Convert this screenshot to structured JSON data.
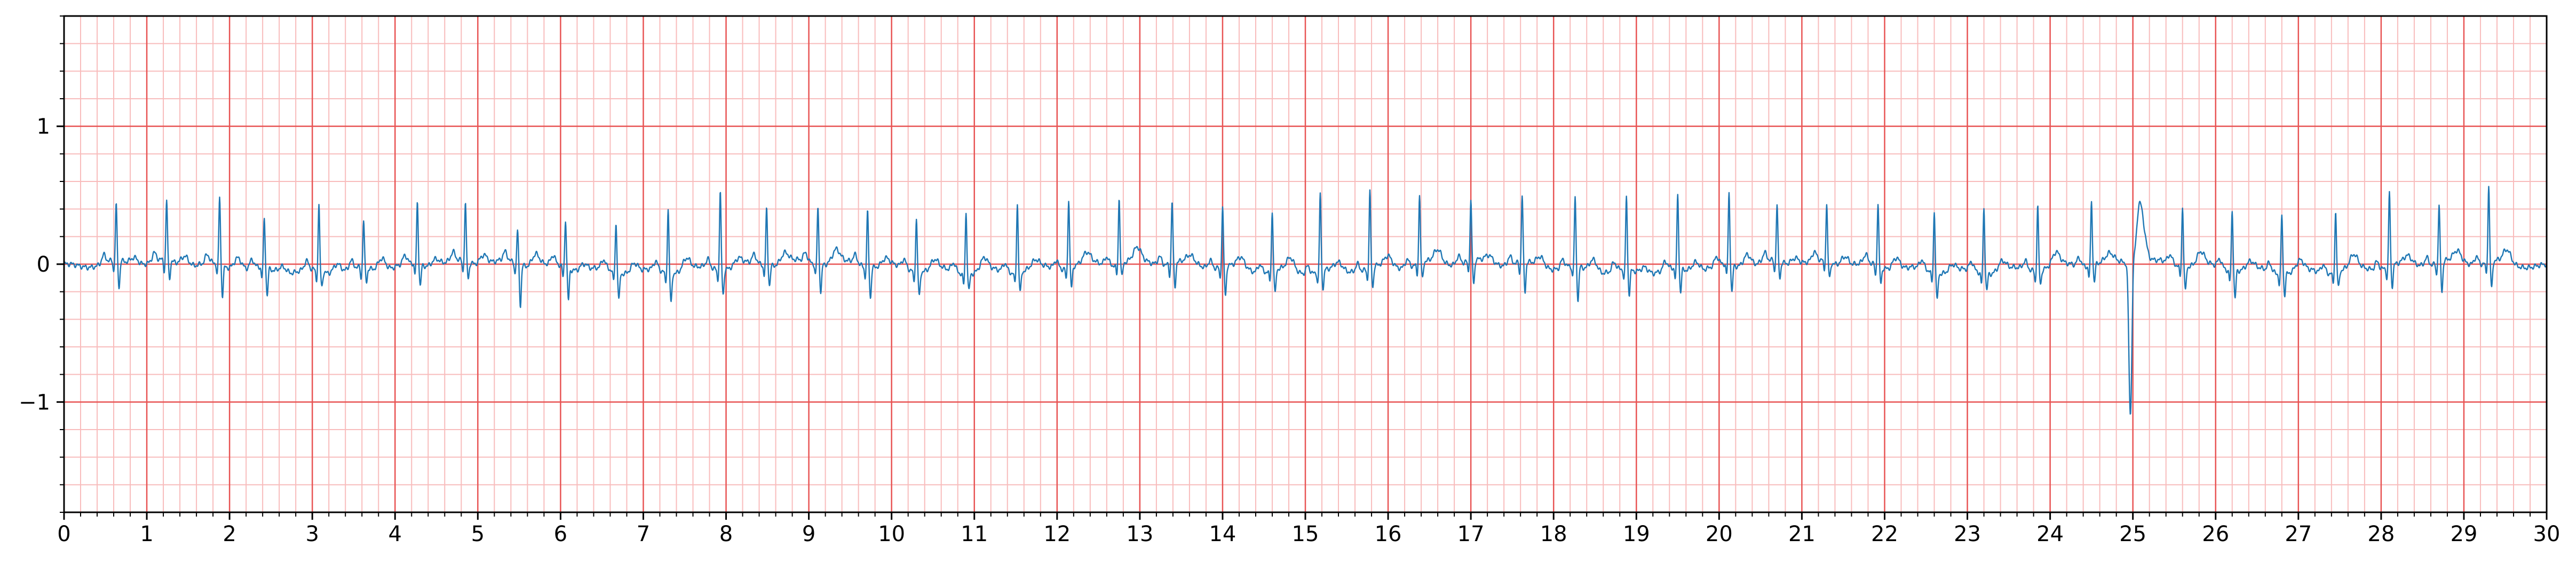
{
  "chart_data": {
    "type": "line",
    "title": "",
    "xlabel": "",
    "ylabel": "",
    "xlim": [
      0,
      30
    ],
    "ylim": [
      -1.8,
      1.8
    ],
    "x_ticks": [
      "0",
      "1",
      "2",
      "3",
      "4",
      "5",
      "6",
      "7",
      "8",
      "9",
      "10",
      "11",
      "12",
      "13",
      "14",
      "15",
      "16",
      "17",
      "18",
      "19",
      "20",
      "21",
      "22",
      "23",
      "24",
      "25",
      "26",
      "27",
      "28",
      "29",
      "30"
    ],
    "y_ticks": [
      {
        "value": 1,
        "label": "1"
      },
      {
        "value": 0,
        "label": "0"
      },
      {
        "value": -1,
        "label": "−1"
      }
    ],
    "grid": {
      "major": {
        "x_step": 1,
        "y_step": 1,
        "color": "#e85454"
      },
      "minor": {
        "x_step": 0.2,
        "y_step": 0.2,
        "color": "#f8bcbc"
      }
    },
    "series": [
      {
        "color": "#1f77b4",
        "sample_rate_hz": 250,
        "beat_times": [
          0.63,
          1.24,
          1.88,
          2.42,
          3.08,
          3.62,
          4.27,
          4.85,
          5.48,
          6.06,
          6.67,
          7.3,
          7.93,
          8.49,
          9.11,
          9.71,
          10.3,
          10.9,
          11.52,
          12.14,
          12.75,
          13.39,
          14.0,
          14.6,
          15.18,
          15.78,
          16.38,
          17.0,
          17.62,
          18.26,
          18.88,
          19.5,
          20.12,
          20.7,
          21.3,
          21.92,
          22.6,
          23.2,
          23.85,
          24.5,
          25.0,
          25.6,
          26.2,
          26.8,
          27.45,
          28.1,
          28.7,
          29.3
        ],
        "r_amplitudes": [
          0.4,
          0.43,
          0.49,
          0.35,
          0.47,
          0.34,
          0.45,
          0.42,
          0.23,
          0.35,
          0.35,
          0.46,
          0.56,
          0.41,
          0.41,
          0.4,
          0.38,
          0.45,
          0.5,
          0.5,
          0.48,
          0.45,
          0.43,
          0.42,
          0.56,
          0.55,
          0.49,
          0.43,
          0.48,
          0.49,
          0.53,
          0.54,
          0.52,
          0.4,
          0.41,
          0.45,
          0.44,
          0.48,
          0.47,
          0.47,
          0.38,
          0.43,
          0.44,
          0.43,
          0.44,
          0.54,
          0.41,
          0.55
        ],
        "s_amplitudes": [
          -0.2,
          -0.13,
          -0.22,
          -0.2,
          -0.11,
          -0.1,
          -0.15,
          -0.12,
          -0.3,
          -0.23,
          -0.2,
          -0.22,
          -0.18,
          -0.14,
          -0.2,
          -0.22,
          -0.18,
          -0.12,
          -0.15,
          -0.15,
          -0.1,
          -0.18,
          -0.22,
          -0.18,
          -0.13,
          -0.15,
          -0.12,
          -0.18,
          -0.22,
          -0.25,
          -0.18,
          -0.17,
          -0.2,
          -0.12,
          -0.12,
          -0.12,
          -0.2,
          -0.12,
          -0.1,
          -0.12,
          -0.1,
          -0.18,
          -0.2,
          -0.15,
          -0.12,
          -0.15,
          -0.22,
          -0.2
        ],
        "ectopic_beat": {
          "time": 24.98,
          "trough": -1.15,
          "peak": 0.45
        }
      }
    ]
  }
}
